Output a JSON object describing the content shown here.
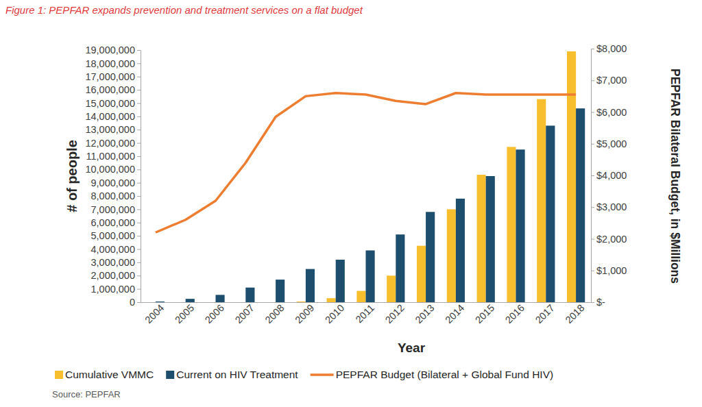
{
  "chart_data": {
    "type": "bar",
    "title": "Figure 1: PEPFAR expands prevention and treatment services on a flat budget",
    "x_label": "Year",
    "y_label": "# of people",
    "y2_label": "PEPFAR Bilateral Budget, in $Millions",
    "source": "Source: PEPFAR",
    "categories": [
      "2004",
      "2005",
      "2006",
      "2007",
      "2008",
      "2009",
      "2010",
      "2011",
      "2012",
      "2013",
      "2014",
      "2015",
      "2016",
      "2017",
      "2018"
    ],
    "series": [
      {
        "name": "Cumulative VMMC",
        "type": "bar",
        "color": "#f7bf2d",
        "values": [
          0,
          0,
          0,
          0,
          0,
          50000,
          300000,
          850000,
          2000000,
          4250000,
          7000000,
          9600000,
          11700000,
          15300000,
          18900000
        ]
      },
      {
        "name": "Current on HIV Treatment",
        "type": "bar",
        "color": "#1d4e6d",
        "values": [
          50000,
          250000,
          550000,
          1100000,
          1700000,
          2500000,
          3200000,
          3900000,
          5100000,
          6800000,
          7800000,
          9500000,
          11500000,
          13300000,
          14600000
        ]
      },
      {
        "name": "PEPFAR Budget (Bilateral + Global Fund HIV)",
        "type": "line",
        "axis": "y2",
        "color": "#ed7d31",
        "values": [
          2200,
          2600,
          3200,
          4400,
          5850,
          6500,
          6600,
          6550,
          6350,
          6250,
          6600,
          6550,
          6550,
          6550,
          6550
        ]
      }
    ],
    "ylim": [
      0,
      19000000
    ],
    "yticks": [
      0,
      {
        "value": 1000000,
        "label": "1,000,000"
      },
      {
        "value": 2000000,
        "label": "2,000,000"
      },
      {
        "value": 3000000,
        "label": "3,000,000"
      },
      {
        "value": 4000000,
        "label": "4,000,000"
      },
      {
        "value": 5000000,
        "label": "5,000,000"
      },
      {
        "value": 6000000,
        "label": "6,000,000"
      },
      {
        "value": 7000000,
        "label": "7,000,000"
      },
      {
        "value": 8000000,
        "label": "8,000,000"
      },
      {
        "value": 9000000,
        "label": "9,000,000"
      },
      {
        "value": 10000000,
        "label": "10,000,000"
      },
      {
        "value": 11000000,
        "label": "11,000,000"
      },
      {
        "value": 12000000,
        "label": "12,000,000"
      },
      {
        "value": 13000000,
        "label": "13,000,000"
      },
      {
        "value": 14000000,
        "label": "14,000,000"
      },
      {
        "value": 15000000,
        "label": "15,000,000"
      },
      {
        "value": 16000000,
        "label": "16,000,000"
      },
      {
        "value": 17000000,
        "label": "17,000,000"
      },
      {
        "value": 18000000,
        "label": "18,000,000"
      },
      {
        "value": 19000000,
        "label": "19,000,000"
      }
    ],
    "y2lim": [
      0,
      8000
    ],
    "y2ticks": [
      {
        "value": 0,
        "label": "$-"
      },
      {
        "value": 1000,
        "label": "$1,000"
      },
      {
        "value": 2000,
        "label": "$2,000"
      },
      {
        "value": 3000,
        "label": "$3,000"
      },
      {
        "value": 4000,
        "label": "$4,000"
      },
      {
        "value": 5000,
        "label": "$5,000"
      },
      {
        "value": 6000,
        "label": "$6,000"
      },
      {
        "value": 7000,
        "label": "$7,000"
      },
      {
        "value": 8000,
        "label": "$8,000"
      }
    ],
    "grid": false,
    "legend": "bottom"
  }
}
